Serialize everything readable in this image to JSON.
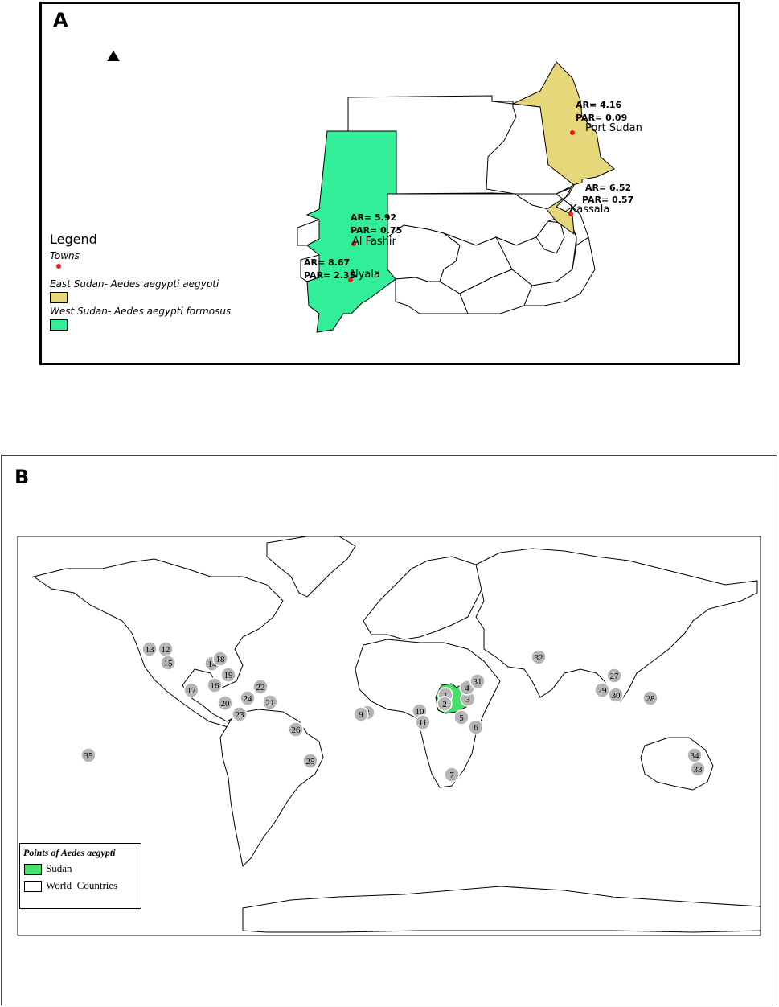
{
  "panel_a": {
    "letter": "A",
    "legend": {
      "title": "Legend",
      "towns_label": "Towns",
      "east_label": "East Sudan- Aedes aegypti aegypti",
      "west_label": "West Sudan- Aedes aegypti formosus",
      "town_color": "#e8201c",
      "east_color": "#e6d87a",
      "west_color": "#33ee99"
    },
    "towns": [
      {
        "name": "Port Sudan",
        "ar": "AR= 4.16",
        "par": "PAR= 0.09"
      },
      {
        "name": "Kassala",
        "ar": "AR= 6.52",
        "par": "PAR= 0.57"
      },
      {
        "name": "Al Fashir",
        "ar": "AR= 5.92",
        "par": "PAR= 0.75"
      },
      {
        "name": "Nyala",
        "ar": "AR= 8.67",
        "par": "PAR= 2.35"
      }
    ]
  },
  "panel_b": {
    "letter": "B",
    "legend": {
      "title": "Points of Aedes aegypti",
      "sudan_label": "Sudan",
      "world_label": "World_Countries",
      "sudan_color": "#44e06a"
    },
    "point_color": "#b5b5b5",
    "points": [
      "1",
      "2",
      "3",
      "4",
      "5",
      "6",
      "7",
      "8",
      "9",
      "10",
      "11",
      "12",
      "13",
      "14",
      "15",
      "16",
      "17",
      "18",
      "19",
      "20",
      "21",
      "22",
      "23",
      "24",
      "25",
      "26",
      "27",
      "28",
      "29",
      "30",
      "31",
      "32",
      "33",
      "34",
      "35"
    ]
  }
}
